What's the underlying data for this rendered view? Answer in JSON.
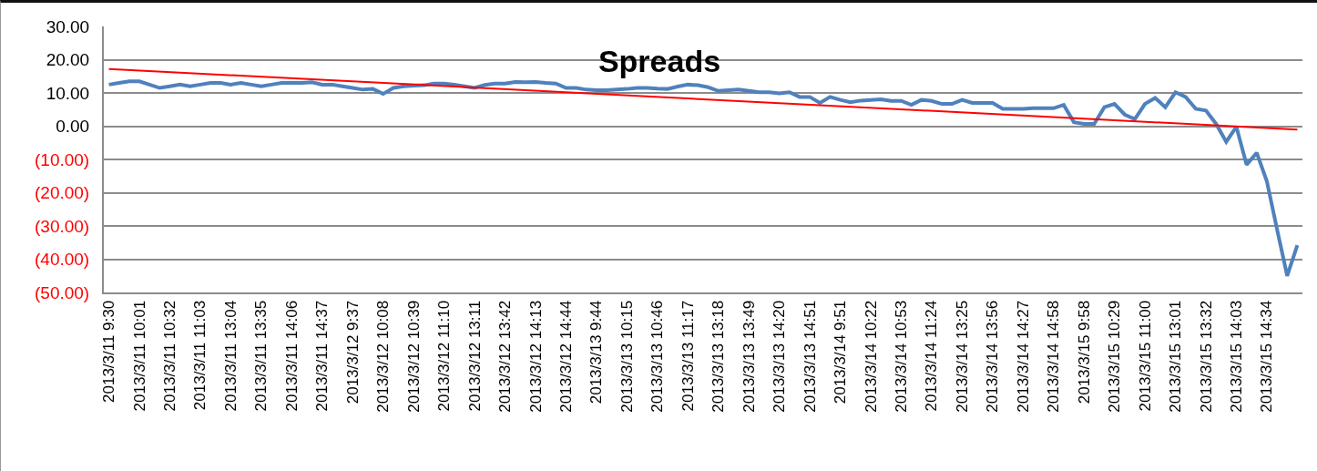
{
  "chart_data": {
    "type": "line",
    "title": "Spreads",
    "categories": [
      "2013/3/11 9:30",
      null,
      null,
      "2013/3/11 10:01",
      null,
      null,
      "2013/3/11 10:32",
      null,
      null,
      "2013/3/11 11:03",
      null,
      null,
      "2013/3/11 13:04",
      null,
      null,
      "2013/3/11 13:35",
      null,
      null,
      "2013/3/11 14:06",
      null,
      null,
      "2013/3/11 14:37",
      null,
      null,
      "2013/3/12 9:37",
      null,
      null,
      "2013/3/12 10:08",
      null,
      null,
      "2013/3/12 10:39",
      null,
      null,
      "2013/3/12 11:10",
      null,
      null,
      "2013/3/12 13:11",
      null,
      null,
      "2013/3/12 13:42",
      null,
      null,
      "2013/3/12 14:13",
      null,
      null,
      "2013/3/12 14:44",
      null,
      null,
      "2013/3/13 9:44",
      null,
      null,
      "2013/3/13 10:15",
      null,
      null,
      "2013/3/13 10:46",
      null,
      null,
      "2013/3/13 11:17",
      null,
      null,
      "2013/3/13 13:18",
      null,
      null,
      "2013/3/13 13:49",
      null,
      null,
      "2013/3/13 14:20",
      null,
      null,
      "2013/3/13 14:51",
      null,
      null,
      "2013/3/14 9:51",
      null,
      null,
      "2013/3/14 10:22",
      null,
      null,
      "2013/3/14 10:53",
      null,
      null,
      "2013/3/14 11:24",
      null,
      null,
      "2013/3/14 13:25",
      null,
      null,
      "2013/3/14 13:56",
      null,
      null,
      "2013/3/14 14:27",
      null,
      null,
      "2013/3/14 14:58",
      null,
      null,
      "2013/3/15 9:58",
      null,
      null,
      "2013/3/15 10:29",
      null,
      null,
      "2013/3/15 11:00",
      null,
      null,
      "2013/3/15 13:01",
      null,
      null,
      "2013/3/15 13:32",
      null,
      null,
      "2013/3/15 14:03",
      null,
      null,
      "2013/3/15 14:34",
      null,
      null,
      null
    ],
    "series": [
      {
        "color": "#4f81bd",
        "values": [
          12.5,
          13,
          13.5,
          13.5,
          12.5,
          11.5,
          12,
          12.5,
          12,
          12.5,
          13,
          13,
          12.5,
          13,
          12.5,
          12,
          12.5,
          13,
          13,
          13,
          13.2,
          12.5,
          12.5,
          12,
          11.5,
          11,
          11.2,
          9.7,
          11.5,
          12,
          12.2,
          12.3,
          12.8,
          12.8,
          12.5,
          12,
          11.5,
          12.4,
          12.8,
          12.8,
          13.3,
          13.2,
          13.3,
          13,
          12.8,
          11.5,
          11.5,
          11,
          10.8,
          10.8,
          11,
          11.2,
          11.5,
          11.5,
          11.3,
          11.2,
          11.9,
          12.5,
          12.3,
          11.7,
          10.6,
          10.8,
          11,
          10.6,
          10.2,
          10.2,
          9.9,
          10.2,
          8.8,
          8.8,
          7,
          8.8,
          7.9,
          7.2,
          7.7,
          7.9,
          8.1,
          7.6,
          7.6,
          6.4,
          7.9,
          7.6,
          6.7,
          6.7,
          7.9,
          7,
          7,
          7,
          5.2,
          5.2,
          5.2,
          5.4,
          5.4,
          5.4,
          6.4,
          1.2,
          0.7,
          0.7,
          5.7,
          6.7,
          3.5,
          2.1,
          6.7,
          8.5,
          5.7,
          10.2,
          8.8,
          5.2,
          4.7,
          0.7,
          -4.7,
          -0.2,
          -11.6,
          -8,
          -16.6,
          -31,
          -45,
          -35.8
        ]
      },
      {
        "type": "line",
        "color": "#ff0000",
        "values": [
          17.2,
          null,
          null,
          null,
          null,
          null,
          null,
          null,
          null,
          null,
          null,
          null,
          null,
          null,
          null,
          null,
          null,
          null,
          null,
          null,
          null,
          null,
          null,
          null,
          null,
          null,
          null,
          null,
          null,
          null,
          null,
          null,
          null,
          null,
          null,
          null,
          null,
          null,
          null,
          null,
          null,
          null,
          null,
          null,
          null,
          null,
          null,
          null,
          null,
          null,
          null,
          null,
          null,
          null,
          null,
          null,
          null,
          null,
          null,
          null,
          null,
          null,
          null,
          null,
          null,
          null,
          null,
          null,
          null,
          null,
          null,
          null,
          null,
          null,
          null,
          null,
          null,
          null,
          null,
          null,
          null,
          null,
          null,
          null,
          null,
          null,
          null,
          null,
          null,
          null,
          null,
          null,
          null,
          null,
          null,
          null,
          null,
          null,
          null,
          null,
          null,
          null,
          null,
          null,
          null,
          null,
          null,
          null,
          null,
          null,
          null,
          null,
          null,
          null,
          null,
          null,
          null,
          -1
        ]
      }
    ],
    "ylim": [
      -50,
      30
    ],
    "yticks": [
      {
        "value": -50,
        "label": "(50.00)"
      },
      {
        "value": -40,
        "label": "(40.00)"
      },
      {
        "value": -30,
        "label": "(30.00)"
      },
      {
        "value": -20,
        "label": "(20.00)"
      },
      {
        "value": -10,
        "label": "(10.00)"
      },
      {
        "value": 0,
        "label": "0.00"
      },
      {
        "value": 10,
        "label": "10.00"
      },
      {
        "value": 20,
        "label": "20.00"
      },
      {
        "value": 30,
        "label": "30.00"
      }
    ],
    "grid": "y",
    "marker": "none",
    "line_style": "solid"
  }
}
